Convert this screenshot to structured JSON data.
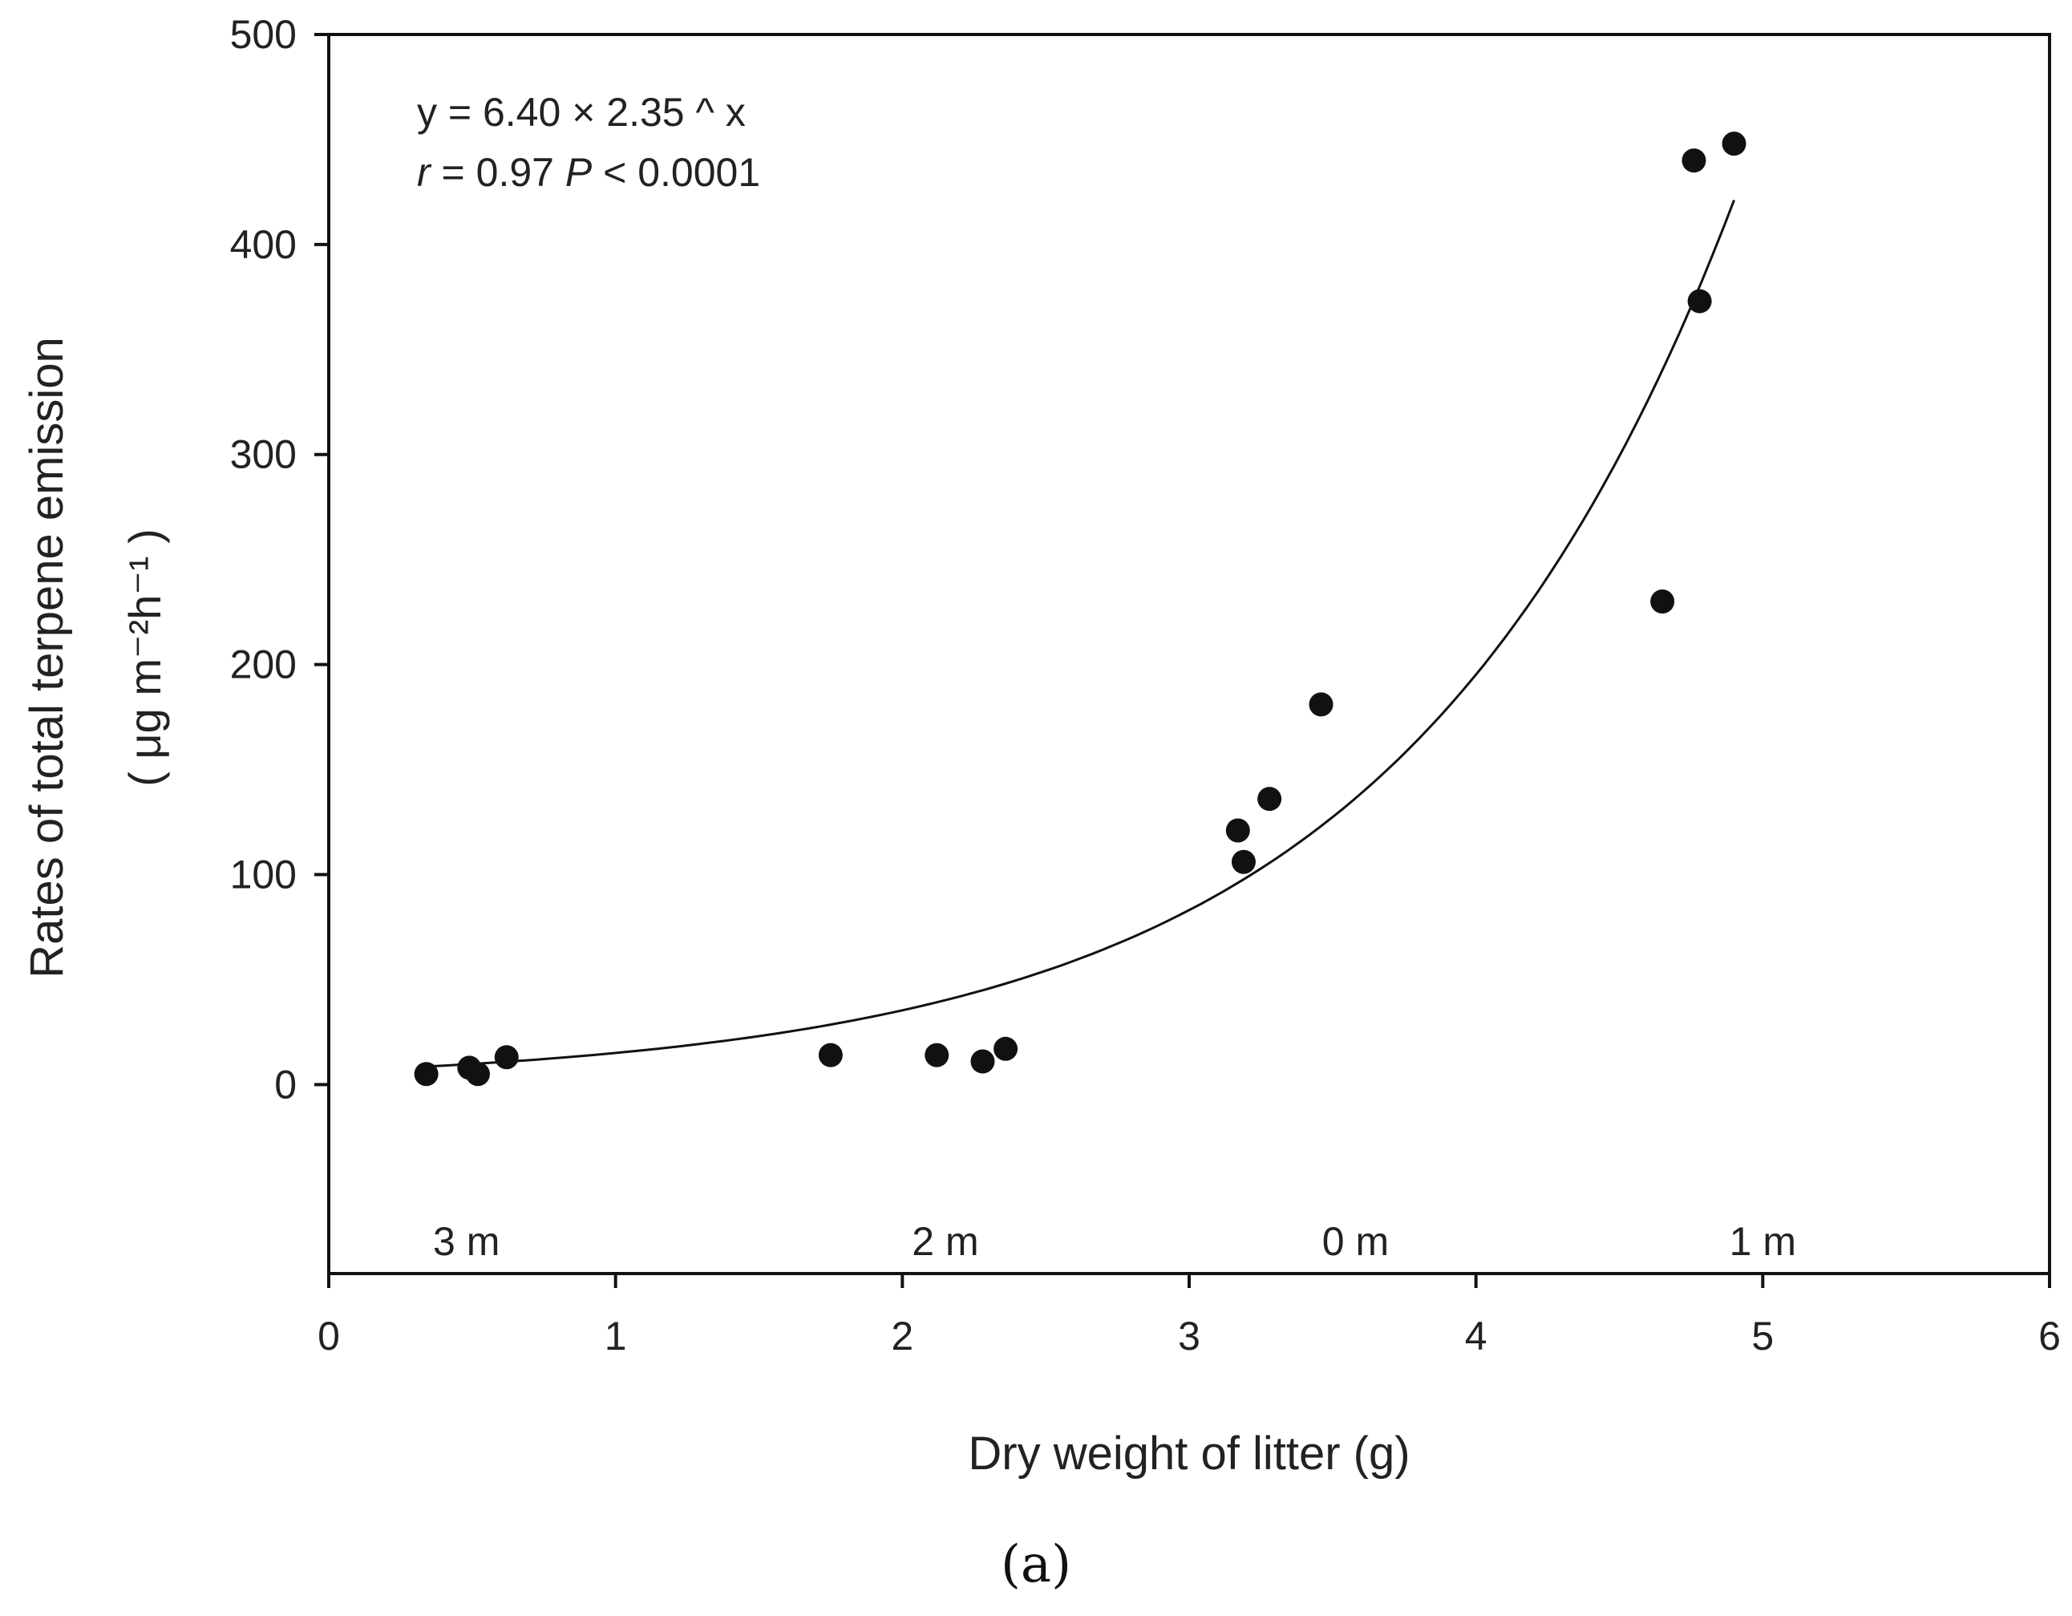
{
  "chart_data": {
    "type": "scatter",
    "xlabel": "Dry weight of litter (g)",
    "ylabel_line1": "Rates of total terpene emission",
    "ylabel_line2": "( μg m⁻²h⁻¹ )",
    "xlim": [
      0,
      6
    ],
    "ylim": [
      -90,
      500
    ],
    "x_ticks": [
      0,
      1,
      2,
      3,
      4,
      5,
      6
    ],
    "y_ticks": [
      0,
      100,
      200,
      300,
      400,
      500
    ],
    "equation_line1": "y = 6.40 × 2.35 ^ x",
    "equation_line2_r": "r",
    "equation_line2_mid": " = 0.97 ",
    "equation_line2_p": "P",
    "equation_line2_end": " < 0.0001",
    "fit": {
      "a": 6.4,
      "b": 2.35,
      "x_range": [
        0.35,
        4.9
      ]
    },
    "group_labels": [
      {
        "text": "3 m",
        "x": 0.48
      },
      {
        "text": "2 m",
        "x": 2.15
      },
      {
        "text": "0 m",
        "x": 3.58
      },
      {
        "text": "1 m",
        "x": 5.0
      }
    ],
    "series": [
      {
        "name": "observations",
        "points": [
          {
            "x": 0.34,
            "y": 5
          },
          {
            "x": 0.49,
            "y": 8
          },
          {
            "x": 0.52,
            "y": 5
          },
          {
            "x": 0.62,
            "y": 13
          },
          {
            "x": 1.75,
            "y": 14
          },
          {
            "x": 2.12,
            "y": 14
          },
          {
            "x": 2.28,
            "y": 11
          },
          {
            "x": 2.36,
            "y": 17
          },
          {
            "x": 3.17,
            "y": 121
          },
          {
            "x": 3.19,
            "y": 106
          },
          {
            "x": 3.28,
            "y": 136
          },
          {
            "x": 3.46,
            "y": 181
          },
          {
            "x": 4.65,
            "y": 230
          },
          {
            "x": 4.76,
            "y": 440
          },
          {
            "x": 4.78,
            "y": 373
          },
          {
            "x": 4.9,
            "y": 448
          }
        ]
      }
    ]
  },
  "panel_label": "(a)",
  "colors": {
    "ink": "#111111",
    "axis": "#222222"
  }
}
